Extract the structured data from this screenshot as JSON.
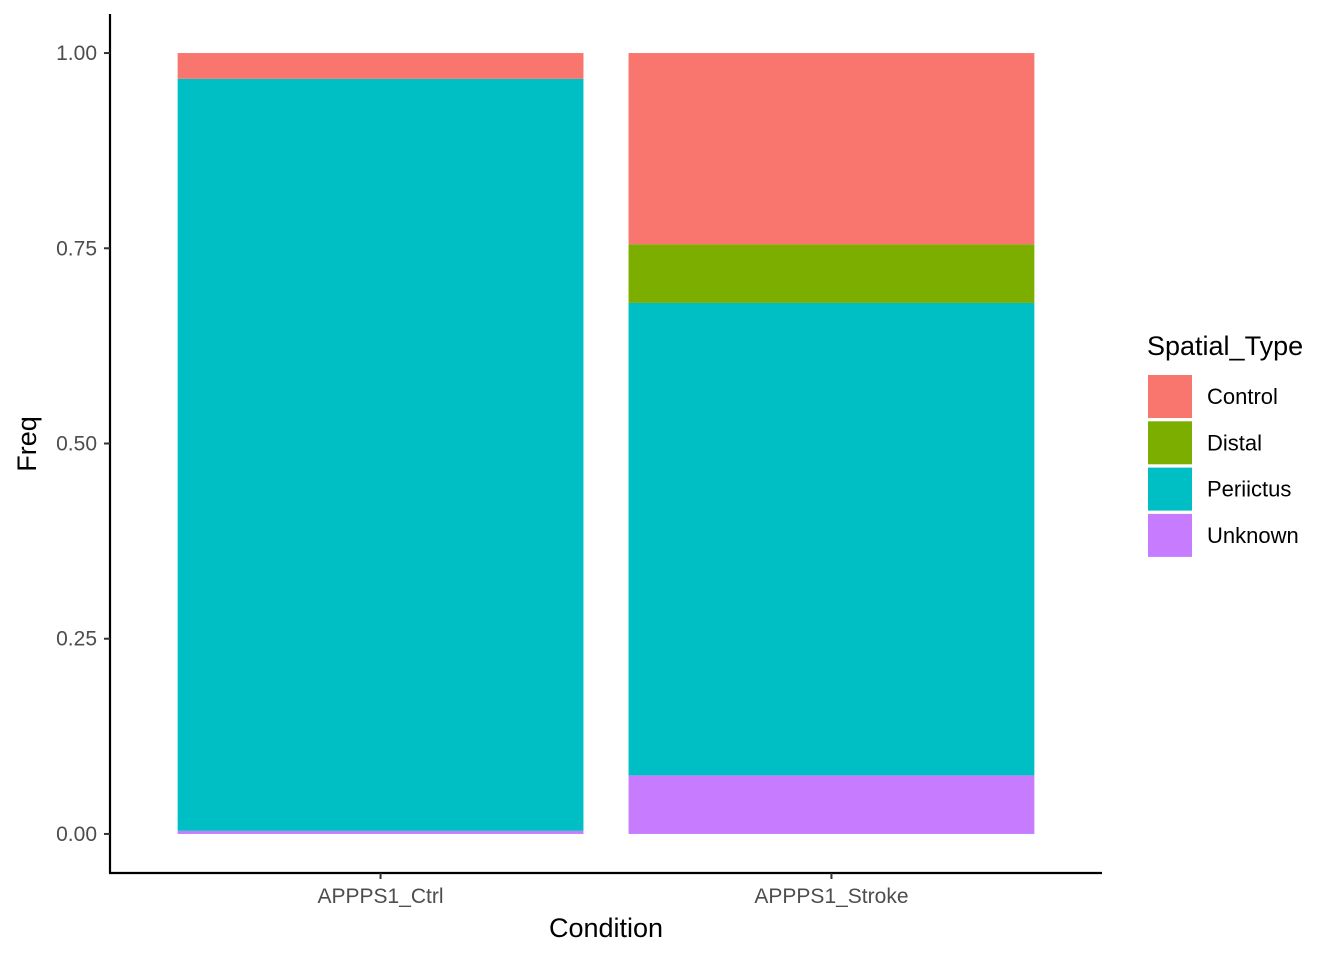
{
  "chart_data": {
    "type": "bar",
    "stacked": true,
    "title": "",
    "xlabel": "Condition",
    "ylabel": "Freq",
    "ylim": [
      -0.05,
      1.05
    ],
    "yticks": [
      "0.00",
      "0.25",
      "0.50",
      "0.75",
      "1.00"
    ],
    "grid": false,
    "legend_title": "Spatial_Type",
    "legend_position": "right",
    "categories": [
      "APPPS1_Ctrl",
      "APPPS1_Stroke"
    ],
    "series": [
      {
        "name": "Unknown",
        "color": "#C77CFF",
        "values": [
          0.004,
          0.075
        ]
      },
      {
        "name": "Periictus",
        "color": "#00BFC4",
        "values": [
          0.963,
          0.605
        ]
      },
      {
        "name": "Distal",
        "color": "#7CAE00",
        "values": [
          0.0,
          0.075
        ]
      },
      {
        "name": "Control",
        "color": "#F8766D",
        "values": [
          0.033,
          0.245
        ]
      }
    ],
    "legend_order": [
      "Control",
      "Distal",
      "Periictus",
      "Unknown"
    ]
  }
}
